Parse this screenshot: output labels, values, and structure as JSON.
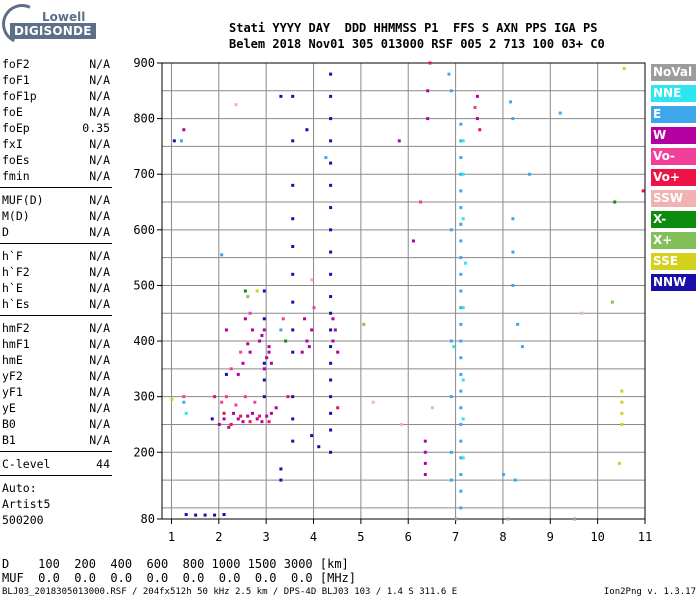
{
  "logo": {
    "line1": "Lowell",
    "line2": "DIGISONDE"
  },
  "header": {
    "line1": "Stati YYYY DAY  DDD HHMMSS P1  FFS S AXN PPS IGA PS",
    "line2": "Belem 2018 Nov01 305 013000 RSF 005 2 713 100 03+ C0"
  },
  "params": {
    "group1": [
      {
        "key": "foF2",
        "value": "N/A"
      },
      {
        "key": "foF1",
        "value": "N/A"
      },
      {
        "key": "foF1p",
        "value": "N/A"
      },
      {
        "key": "foE",
        "value": "N/A"
      },
      {
        "key": "foEp",
        "value": "0.35"
      },
      {
        "key": "fxI",
        "value": "N/A"
      },
      {
        "key": "foEs",
        "value": "N/A"
      },
      {
        "key": "fmin",
        "value": "N/A"
      }
    ],
    "group2": [
      {
        "key": "MUF(D)",
        "value": "N/A"
      },
      {
        "key": "M(D)",
        "value": "N/A"
      },
      {
        "key": "D",
        "value": "N/A"
      }
    ],
    "group3": [
      {
        "key": "h`F",
        "value": "N/A"
      },
      {
        "key": "h`F2",
        "value": "N/A"
      },
      {
        "key": "h`E",
        "value": "N/A"
      },
      {
        "key": "h`Es",
        "value": "N/A"
      }
    ],
    "group4": [
      {
        "key": "hmF2",
        "value": "N/A"
      },
      {
        "key": "hmF1",
        "value": "N/A"
      },
      {
        "key": "hmE",
        "value": "N/A"
      },
      {
        "key": "yF2",
        "value": "N/A"
      },
      {
        "key": "yF1",
        "value": "N/A"
      },
      {
        "key": "yE",
        "value": "N/A"
      },
      {
        "key": "B0",
        "value": "N/A"
      },
      {
        "key": "B1",
        "value": "N/A"
      }
    ],
    "group5": [
      {
        "key": "C-level",
        "value": "44"
      }
    ]
  },
  "auto": {
    "line1": "Auto:",
    "line2": "Artist5",
    "line3": "500200"
  },
  "legend": [
    {
      "label": "NoVal",
      "color": "#9c9c9c"
    },
    {
      "label": "NNE",
      "color": "#2ee6f0"
    },
    {
      "label": "E",
      "color": "#3ea7ec"
    },
    {
      "label": "W",
      "color": "#b400a0"
    },
    {
      "label": "Vo-",
      "color": "#f0409a"
    },
    {
      "label": "Vo+",
      "color": "#ec1446"
    },
    {
      "label": "SSW",
      "color": "#f2b2b2"
    },
    {
      "label": "X-",
      "color": "#0c8c0c"
    },
    {
      "label": "X+",
      "color": "#84c05a"
    },
    {
      "label": "SSE",
      "color": "#d2d21c"
    },
    {
      "label": "NNW",
      "color": "#1a0ea8"
    }
  ],
  "mufd": {
    "line1": "D    100  200  400  600  800 1000 1500 3000 [km]",
    "line2": "MUF  0.0  0.0  0.0  0.0  0.0  0.0  0.0  0.0 [MHz]"
  },
  "footer": {
    "text": "BLJ03_2018305013000.RSF / 204fx512h 50 kHz 2.5 km / DPS-4D BLJ03 103 / 1.4 S 311.6 E",
    "version": "Ion2Png v. 1.3.17"
  },
  "chart_data": {
    "type": "scatter",
    "xlim": [
      0.8,
      11
    ],
    "ylim": [
      80,
      900
    ],
    "x_ticks": [
      1,
      2,
      3,
      4,
      5,
      6,
      7,
      8,
      9,
      10,
      11
    ],
    "y_ticks": [
      80,
      200,
      300,
      400,
      500,
      600,
      700,
      800,
      900
    ],
    "xlabel": "",
    "ylabel": "",
    "grid": true,
    "series": [
      {
        "name": "NNW",
        "color": "#1a0ea8",
        "points": [
          [
            3.55,
            220
          ],
          [
            3.55,
            260
          ],
          [
            3.55,
            300
          ],
          [
            3.55,
            380
          ],
          [
            3.55,
            420
          ],
          [
            3.55,
            470
          ],
          [
            3.55,
            520
          ],
          [
            3.55,
            570
          ],
          [
            3.55,
            620
          ],
          [
            3.55,
            680
          ],
          [
            3.55,
            760
          ],
          [
            3.55,
            840
          ],
          [
            4.35,
            200
          ],
          [
            4.35,
            240
          ],
          [
            4.35,
            270
          ],
          [
            4.35,
            300
          ],
          [
            4.35,
            330
          ],
          [
            4.35,
            360
          ],
          [
            4.35,
            390
          ],
          [
            4.35,
            420
          ],
          [
            4.35,
            450
          ],
          [
            4.35,
            480
          ],
          [
            4.35,
            520
          ],
          [
            4.35,
            560
          ],
          [
            4.35,
            600
          ],
          [
            4.35,
            640
          ],
          [
            4.35,
            680
          ],
          [
            4.35,
            720
          ],
          [
            4.35,
            760
          ],
          [
            4.35,
            800
          ],
          [
            4.35,
            840
          ],
          [
            4.35,
            880
          ],
          [
            2.95,
            300
          ],
          [
            2.95,
            330
          ],
          [
            2.95,
            360
          ],
          [
            2.95,
            440
          ],
          [
            2.95,
            490
          ],
          [
            3.3,
            150
          ],
          [
            3.3,
            170
          ],
          [
            4.1,
            210
          ],
          [
            3.95,
            230
          ],
          [
            3.85,
            780
          ],
          [
            3.3,
            840
          ],
          [
            1.85,
            260
          ],
          [
            2.15,
            340
          ],
          [
            1.3,
            88
          ],
          [
            1.5,
            87
          ],
          [
            1.7,
            87
          ],
          [
            1.9,
            87
          ],
          [
            2.1,
            88
          ],
          [
            1.05,
            760
          ]
        ]
      },
      {
        "name": "W",
        "color": "#b400a0",
        "points": [
          [
            2.0,
            250
          ],
          [
            2.1,
            260
          ],
          [
            2.2,
            245
          ],
          [
            2.3,
            270
          ],
          [
            2.4,
            260
          ],
          [
            2.5,
            255
          ],
          [
            2.6,
            265
          ],
          [
            2.7,
            270
          ],
          [
            2.8,
            260
          ],
          [
            2.9,
            255
          ],
          [
            3.0,
            265
          ],
          [
            3.1,
            270
          ],
          [
            3.2,
            280
          ],
          [
            2.95,
            350
          ],
          [
            3.0,
            370
          ],
          [
            3.05,
            390
          ],
          [
            2.9,
            410
          ],
          [
            2.85,
            400
          ],
          [
            2.95,
            420
          ],
          [
            3.05,
            380
          ],
          [
            3.1,
            360
          ],
          [
            2.4,
            340
          ],
          [
            2.5,
            360
          ],
          [
            2.6,
            395
          ],
          [
            2.7,
            420
          ],
          [
            2.55,
            440
          ],
          [
            2.65,
            380
          ],
          [
            3.75,
            380
          ],
          [
            3.85,
            400
          ],
          [
            3.95,
            420
          ],
          [
            3.8,
            440
          ],
          [
            3.9,
            390
          ],
          [
            4.4,
            400
          ],
          [
            4.45,
            420
          ],
          [
            4.5,
            380
          ],
          [
            4.4,
            440
          ],
          [
            6.35,
            160
          ],
          [
            6.35,
            180
          ],
          [
            6.35,
            200
          ],
          [
            6.35,
            220
          ],
          [
            6.4,
            850
          ],
          [
            6.4,
            800
          ],
          [
            7.45,
            800
          ],
          [
            7.45,
            840
          ],
          [
            1.25,
            780
          ],
          [
            2.15,
            420
          ],
          [
            5.8,
            760
          ],
          [
            6.1,
            580
          ]
        ]
      },
      {
        "name": "Vo-",
        "color": "#f0409a",
        "points": [
          [
            2.05,
            290
          ],
          [
            2.15,
            300
          ],
          [
            2.35,
            285
          ],
          [
            2.55,
            300
          ],
          [
            2.75,
            290
          ],
          [
            1.25,
            300
          ],
          [
            2.25,
            350
          ],
          [
            2.45,
            380
          ],
          [
            3.35,
            440
          ],
          [
            2.65,
            450
          ],
          [
            4.0,
            460
          ],
          [
            6.25,
            650
          ],
          [
            7.4,
            820
          ]
        ]
      },
      {
        "name": "Vo+",
        "color": "#ec1446",
        "points": [
          [
            2.1,
            270
          ],
          [
            2.25,
            250
          ],
          [
            2.45,
            265
          ],
          [
            2.65,
            255
          ],
          [
            2.85,
            265
          ],
          [
            3.05,
            255
          ],
          [
            1.9,
            300
          ],
          [
            3.45,
            300
          ],
          [
            4.5,
            280
          ],
          [
            6.45,
            900
          ],
          [
            7.5,
            780
          ],
          [
            10.95,
            670
          ]
        ]
      },
      {
        "name": "E",
        "color": "#3ea7ec",
        "points": [
          [
            7.1,
            100
          ],
          [
            7.1,
            130
          ],
          [
            7.1,
            160
          ],
          [
            7.1,
            190
          ],
          [
            7.1,
            220
          ],
          [
            7.1,
            250
          ],
          [
            7.1,
            280
          ],
          [
            7.1,
            310
          ],
          [
            7.1,
            340
          ],
          [
            7.1,
            370
          ],
          [
            7.1,
            400
          ],
          [
            7.1,
            430
          ],
          [
            7.1,
            460
          ],
          [
            7.1,
            490
          ],
          [
            7.1,
            520
          ],
          [
            7.1,
            550
          ],
          [
            7.1,
            580
          ],
          [
            7.1,
            610
          ],
          [
            7.1,
            640
          ],
          [
            7.1,
            670
          ],
          [
            7.1,
            700
          ],
          [
            7.1,
            730
          ],
          [
            7.1,
            760
          ],
          [
            7.1,
            790
          ],
          [
            6.9,
            150
          ],
          [
            6.9,
            200
          ],
          [
            6.9,
            300
          ],
          [
            6.9,
            400
          ],
          [
            6.9,
            600
          ],
          [
            6.9,
            850
          ],
          [
            6.85,
            880
          ],
          [
            8.15,
            830
          ],
          [
            8.2,
            800
          ],
          [
            8.2,
            620
          ],
          [
            8.2,
            560
          ],
          [
            8.2,
            500
          ],
          [
            8.3,
            430
          ],
          [
            8.4,
            390
          ],
          [
            8.0,
            160
          ],
          [
            8.25,
            150
          ],
          [
            8.55,
            700
          ],
          [
            9.2,
            810
          ],
          [
            1.2,
            760
          ],
          [
            1.25,
            290
          ],
          [
            2.05,
            555
          ],
          [
            3.3,
            420
          ],
          [
            4.25,
            730
          ]
        ]
      },
      {
        "name": "NNE",
        "color": "#2ee6f0",
        "points": [
          [
            7.15,
            760
          ],
          [
            7.15,
            700
          ],
          [
            7.15,
            620
          ],
          [
            7.2,
            540
          ],
          [
            7.15,
            460
          ],
          [
            6.95,
            390
          ],
          [
            7.15,
            330
          ],
          [
            7.15,
            260
          ],
          [
            7.15,
            190
          ],
          [
            1.3,
            270
          ]
        ]
      },
      {
        "name": "SSW",
        "color": "#f2b2b2",
        "points": [
          [
            2.35,
            825
          ],
          [
            3.95,
            510
          ],
          [
            5.25,
            290
          ],
          [
            5.85,
            250
          ],
          [
            9.65,
            450
          ],
          [
            6.5,
            280
          ]
        ]
      },
      {
        "name": "X-",
        "color": "#0c8c0c",
        "points": [
          [
            2.55,
            490
          ],
          [
            10.35,
            650
          ],
          [
            3.4,
            400
          ]
        ]
      },
      {
        "name": "X+",
        "color": "#84c05a",
        "points": [
          [
            2.6,
            480
          ],
          [
            5.05,
            430
          ],
          [
            10.3,
            470
          ]
        ]
      },
      {
        "name": "SSE",
        "color": "#d2d21c",
        "points": [
          [
            10.5,
            250
          ],
          [
            10.5,
            270
          ],
          [
            10.5,
            290
          ],
          [
            10.5,
            310
          ],
          [
            10.45,
            180
          ],
          [
            10.55,
            890
          ],
          [
            1.0,
            295
          ],
          [
            2.8,
            490
          ]
        ]
      },
      {
        "name": "NoVal",
        "color": "#9c9c9c",
        "points": [
          [
            7.0,
            80
          ],
          [
            8.1,
            80
          ],
          [
            9.5,
            80
          ]
        ]
      }
    ]
  }
}
